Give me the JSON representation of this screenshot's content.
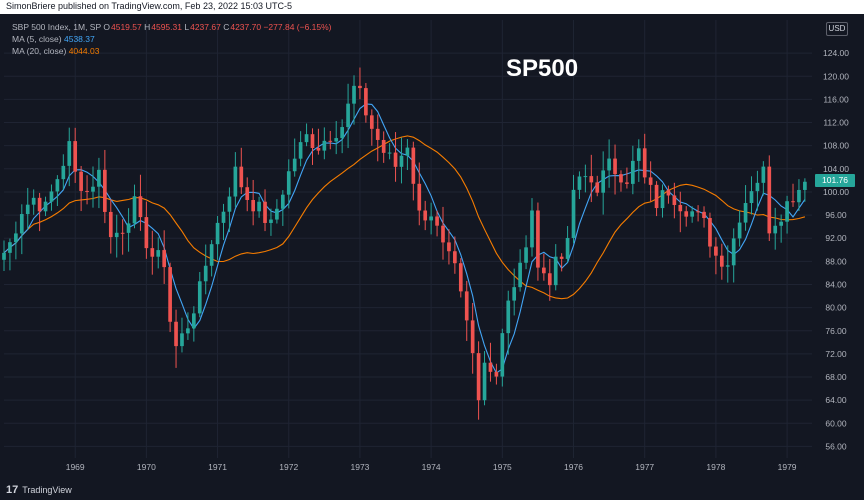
{
  "header": {
    "published_line": "SimonBriere published on TradingView.com, Feb 23, 2022 15:03 UTC-5"
  },
  "legend": {
    "symbol": "SBP 500 Index, 1M, SP",
    "o_label": "O",
    "o_value": "4519.57",
    "h_label": "H",
    "h_value": "4595.31",
    "l_label": "L",
    "l_value": "4237.67",
    "c_label": "C",
    "c_value": "4237.70",
    "change": "−277.84 (−6.15%)",
    "ma5_label": "MA (5, close)",
    "ma5_value": "4538.37",
    "ma20_label": "MA (20, close)",
    "ma20_value": "4044.03"
  },
  "title": "SP500",
  "currency_button": "USD",
  "last_price_tag": "101.76",
  "brand": {
    "logo": "17",
    "name": "TradingView"
  },
  "colors": {
    "background": "#131722",
    "grid": "#1f2433",
    "up": "#26a69a",
    "down": "#ef5350",
    "ma5": "#42a5f5",
    "ma20": "#f57c00",
    "text": "#b2b5be"
  },
  "chart_data": {
    "type": "candlestick",
    "title": "SP500",
    "interval": "1M",
    "x_tick_labels": [
      "1969",
      "1970",
      "1971",
      "1972",
      "1973",
      "1974",
      "1975",
      "1976",
      "1977",
      "1978",
      "1979"
    ],
    "y_tick_labels": [
      "56.00",
      "60.00",
      "64.00",
      "68.00",
      "72.00",
      "76.00",
      "80.00",
      "84.00",
      "88.00",
      "92.00",
      "96.00",
      "100.00",
      "104.00",
      "108.00",
      "112.00",
      "116.00",
      "120.00",
      "124.00"
    ],
    "ylim": [
      54,
      128
    ],
    "x_start": 1968.0,
    "x_end": 1979.35,
    "grid": true,
    "close_anchors": [
      [
        1968.0,
        89.5
      ],
      [
        1968.08,
        91.0
      ],
      [
        1968.25,
        97.0
      ],
      [
        1968.42,
        99.0
      ],
      [
        1968.58,
        97.0
      ],
      [
        1968.75,
        102.5
      ],
      [
        1968.92,
        108.0
      ],
      [
        1969.0,
        103.0
      ],
      [
        1969.17,
        100.0
      ],
      [
        1969.33,
        103.5
      ],
      [
        1969.5,
        92.0
      ],
      [
        1969.67,
        94.0
      ],
      [
        1969.83,
        98.0
      ],
      [
        1969.92,
        94.0
      ],
      [
        1970.08,
        89.0
      ],
      [
        1970.25,
        88.0
      ],
      [
        1970.33,
        78.0
      ],
      [
        1970.42,
        73.0
      ],
      [
        1970.58,
        77.0
      ],
      [
        1970.75,
        83.0
      ],
      [
        1970.92,
        92.0
      ],
      [
        1971.08,
        97.0
      ],
      [
        1971.25,
        103.5
      ],
      [
        1971.42,
        99.0
      ],
      [
        1971.58,
        97.0
      ],
      [
        1971.75,
        94.0
      ],
      [
        1971.92,
        100.5
      ],
      [
        1972.08,
        106.0
      ],
      [
        1972.25,
        109.5
      ],
      [
        1972.42,
        108.0
      ],
      [
        1972.58,
        110.0
      ],
      [
        1972.75,
        111.5
      ],
      [
        1972.92,
        118.0
      ],
      [
        1973.0,
        116.5
      ],
      [
        1973.17,
        111.0
      ],
      [
        1973.33,
        107.0
      ],
      [
        1973.5,
        104.5
      ],
      [
        1973.67,
        108.5
      ],
      [
        1973.83,
        96.0
      ],
      [
        1974.0,
        96.5
      ],
      [
        1974.17,
        90.0
      ],
      [
        1974.33,
        86.5
      ],
      [
        1974.5,
        77.0
      ],
      [
        1974.58,
        72.0
      ],
      [
        1974.67,
        63.5
      ],
      [
        1974.75,
        72.0
      ],
      [
        1974.83,
        69.5
      ],
      [
        1974.92,
        68.5
      ],
      [
        1975.0,
        76.5
      ],
      [
        1975.08,
        81.5
      ],
      [
        1975.17,
        83.0
      ],
      [
        1975.33,
        91.0
      ],
      [
        1975.42,
        95.5
      ],
      [
        1975.5,
        88.5
      ],
      [
        1975.58,
        86.5
      ],
      [
        1975.67,
        83.5
      ],
      [
        1975.75,
        89.0
      ],
      [
        1975.92,
        90.5
      ],
      [
        1976.0,
        100.5
      ],
      [
        1976.17,
        102.5
      ],
      [
        1976.33,
        101.0
      ],
      [
        1976.5,
        104.5
      ],
      [
        1976.75,
        102.5
      ],
      [
        1976.92,
        107.0
      ],
      [
        1977.0,
        102.0
      ],
      [
        1977.17,
        98.0
      ],
      [
        1977.33,
        100.5
      ],
      [
        1977.5,
        98.0
      ],
      [
        1977.67,
        96.5
      ],
      [
        1977.83,
        94.5
      ],
      [
        1978.0,
        89.0
      ],
      [
        1978.17,
        88.0
      ],
      [
        1978.33,
        96.0
      ],
      [
        1978.5,
        101.0
      ],
      [
        1978.67,
        103.5
      ],
      [
        1978.75,
        94.0
      ],
      [
        1978.92,
        96.5
      ],
      [
        1979.08,
        99.5
      ],
      [
        1979.25,
        101.76
      ]
    ]
  }
}
